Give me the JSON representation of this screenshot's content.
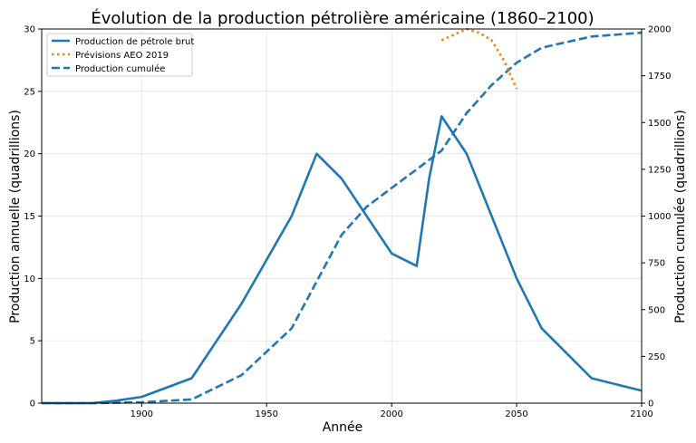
{
  "chart_data": {
    "type": "line",
    "title": "Évolution de la production pétrolière américaine (1860–2100)",
    "xlabel": "Année",
    "ylabel_left": "Production annuelle (quadrillions)",
    "ylabel_right": "Production cumulée (quadrillions)",
    "xlim": [
      1860,
      2100
    ],
    "ylim_left": [
      0,
      30
    ],
    "ylim_right": [
      0,
      2000
    ],
    "xticks": [
      1900,
      1950,
      2000,
      2050,
      2100
    ],
    "yticks_left": [
      0,
      5,
      10,
      15,
      20,
      25,
      30
    ],
    "yticks_right": [
      0,
      250,
      500,
      750,
      1000,
      1250,
      1500,
      1750,
      2000
    ],
    "grid": true,
    "legend_position": "top-left",
    "series": [
      {
        "name": "Production de pétrole brut",
        "axis": "left",
        "style": "solid",
        "color": "#1f77b4",
        "x": [
          1860,
          1880,
          1890,
          1900,
          1920,
          1940,
          1960,
          1970,
          1980,
          2000,
          2010,
          2015,
          2020,
          2030,
          2050,
          2060,
          2080,
          2100
        ],
        "y": [
          0,
          0,
          0.2,
          0.5,
          2,
          8,
          15,
          20,
          18,
          12,
          11,
          18,
          23,
          20,
          10,
          6,
          2,
          1
        ]
      },
      {
        "name": "Prévisions AEO 2019",
        "axis": "right",
        "style": "dotted",
        "color": "#ff7f0e",
        "x": [
          2020,
          2025,
          2030,
          2035,
          2040,
          2045,
          2050
        ],
        "y": [
          1940,
          1970,
          2000,
          1980,
          1940,
          1830,
          1680
        ]
      },
      {
        "name": "Production cumulée",
        "axis": "right",
        "style": "dashed",
        "color": "#1f77b4",
        "x": [
          1860,
          1880,
          1900,
          1920,
          1940,
          1960,
          1970,
          1980,
          1990,
          2000,
          2010,
          2020,
          2030,
          2040,
          2050,
          2060,
          2080,
          2100
        ],
        "y": [
          0,
          0,
          5,
          20,
          150,
          400,
          650,
          900,
          1050,
          1150,
          1250,
          1350,
          1550,
          1700,
          1820,
          1900,
          1960,
          1980
        ]
      }
    ]
  }
}
